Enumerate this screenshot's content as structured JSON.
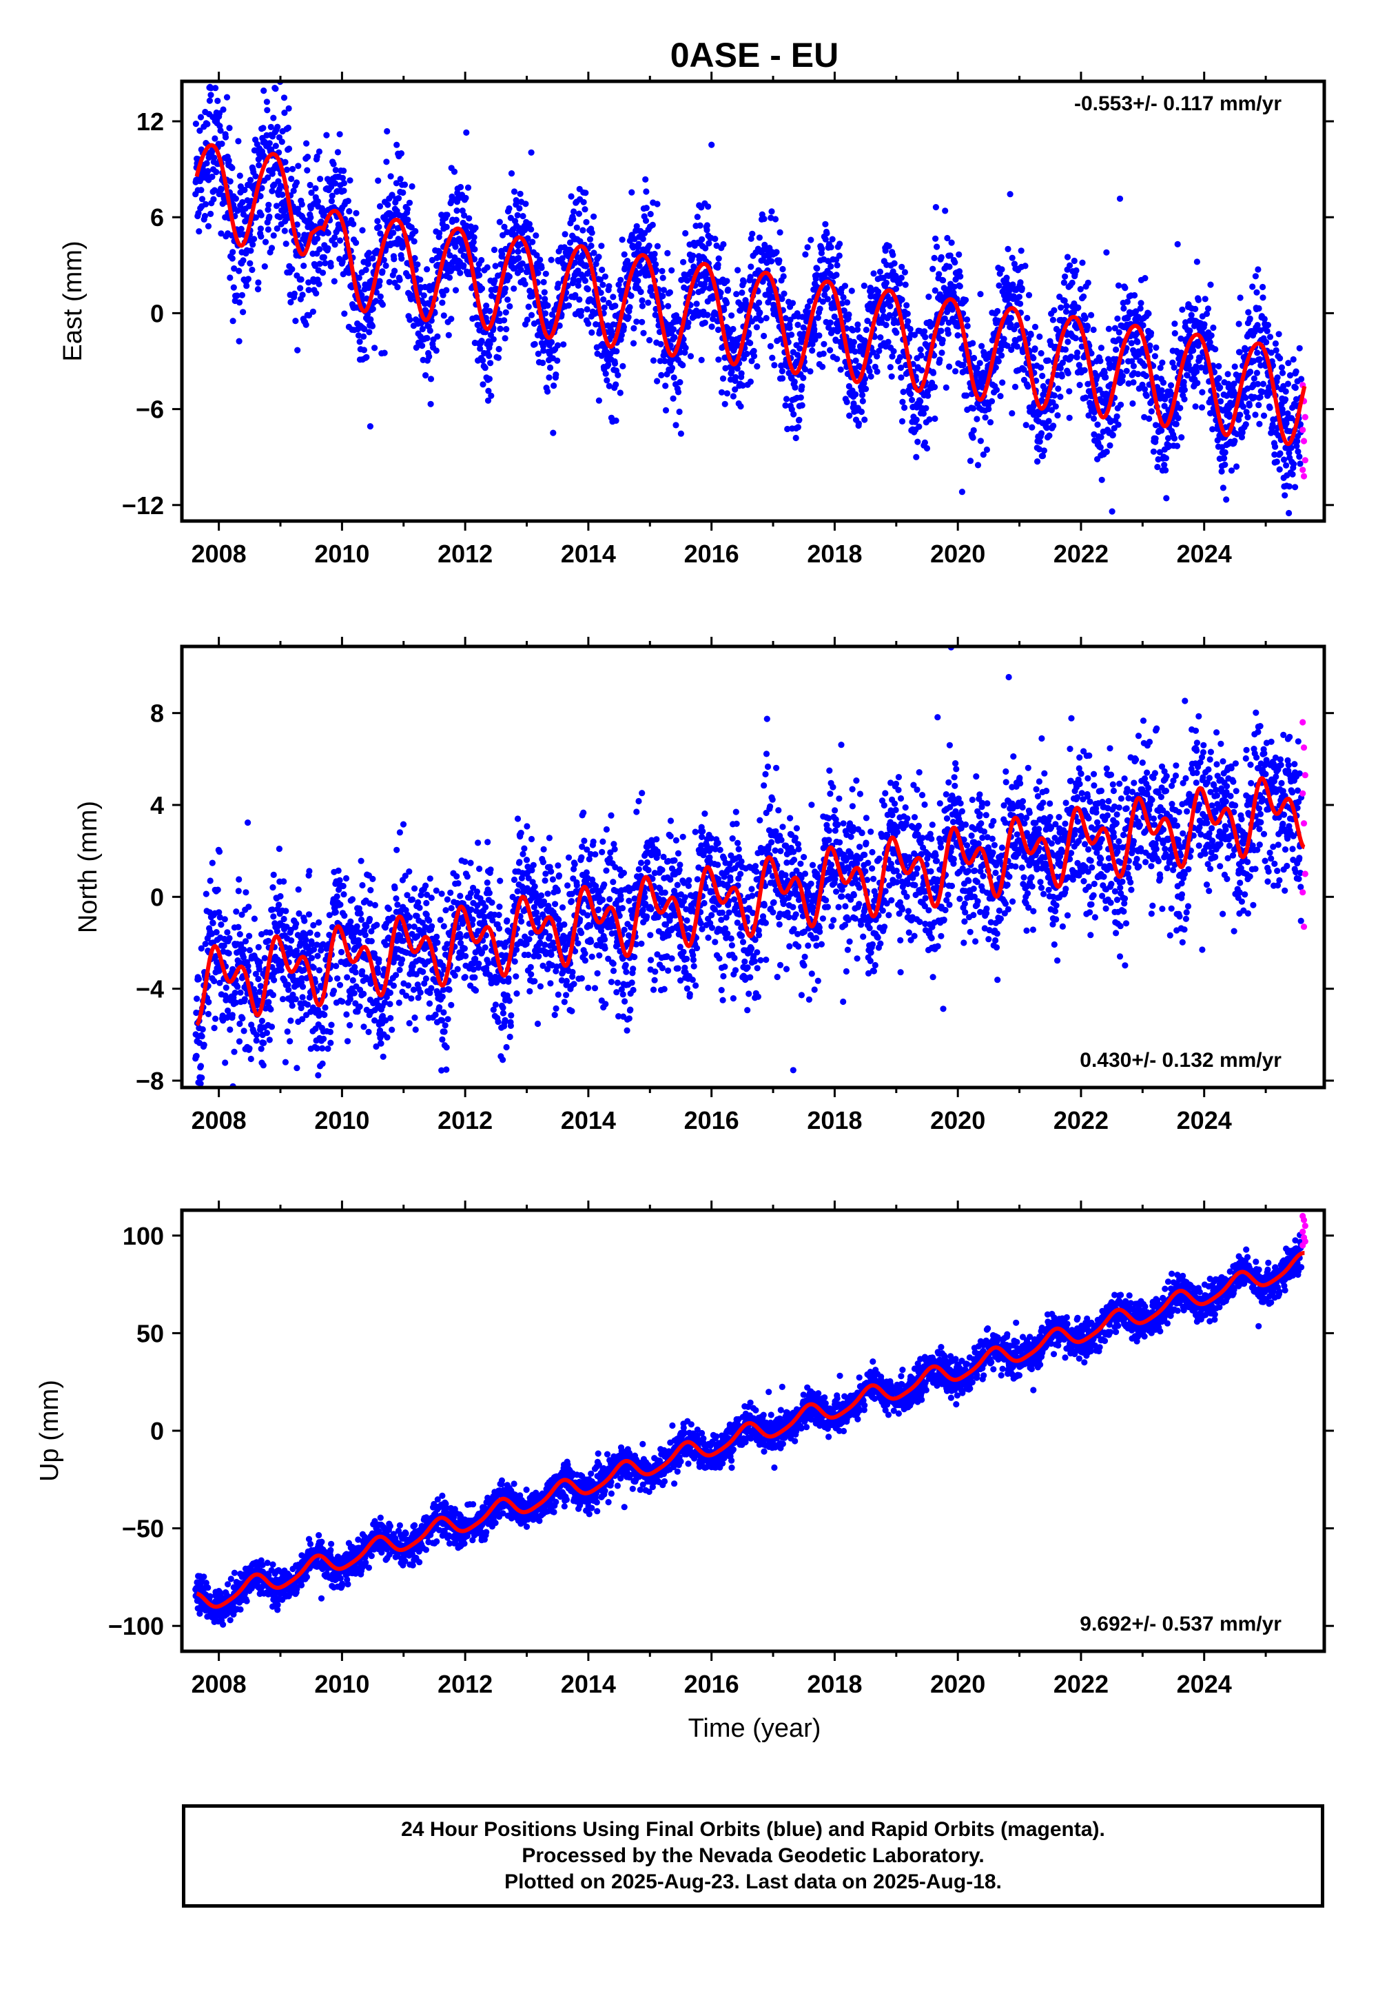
{
  "chart_data": {
    "type": "scatter",
    "title": "0ASE - EU",
    "xlabel": "Time (year)",
    "xlim": [
      2007.4,
      2025.95
    ],
    "xticks": [
      2008,
      2010,
      2012,
      2014,
      2016,
      2018,
      2020,
      2022,
      2024
    ],
    "xtick_labels": [
      "2008",
      "2010",
      "2012",
      "2014",
      "2016",
      "2018",
      "2020",
      "2022",
      "2024"
    ],
    "colors": {
      "final": "#0000ff",
      "rapid": "#ff00ff",
      "model": "#ff0000"
    },
    "panels": [
      {
        "key": "east",
        "ylabel": "East (mm)",
        "ylim": [
          -13,
          14.5
        ],
        "yticks": [
          12,
          6,
          0,
          -6,
          -12
        ],
        "ytick_labels": [
          "12",
          "6",
          "0",
          "−6",
          "−12"
        ],
        "rate": "-0.553+/- 0.117 mm/yr",
        "model": {
          "t0": 2016.5,
          "offset": 0.0,
          "slope": -0.553,
          "amp1": 3.0,
          "phase1": 2.4,
          "amp2": 0.3,
          "phase2": 0.5,
          "pre2009_offset": 3.0
        },
        "scatter": 2.0,
        "rapid_values": [
          -4.5,
          -5.5,
          -6.5,
          -7.3,
          -8.0,
          -9.2,
          -9.8,
          -10.2
        ]
      },
      {
        "key": "north",
        "ylabel": "North (mm)",
        "ylim": [
          -8.3,
          10.9
        ],
        "yticks": [
          8,
          4,
          0,
          -4,
          -8
        ],
        "ytick_labels": [
          "8",
          "4",
          "0",
          "−4",
          "−8"
        ],
        "rate": "0.430+/- 0.132 mm/yr",
        "model": {
          "t0": 2016.5,
          "offset": 0.0,
          "slope": 0.43,
          "amp1": 1.0,
          "phase1": 1.2,
          "amp2": 0.9,
          "phase2": 2.8,
          "pre2009_offset": 0.0
        },
        "scatter": 1.6,
        "rapid_values": [
          7.6,
          6.5,
          5.3,
          4.5,
          3.2,
          1.0,
          0.2,
          -1.3
        ]
      },
      {
        "key": "up",
        "ylabel": "Up (mm)",
        "ylim": [
          -113,
          113
        ],
        "yticks": [
          100,
          50,
          0,
          -50,
          -100
        ],
        "ytick_labels": [
          "100",
          "50",
          "0",
          "−50",
          "−100"
        ],
        "rate": "9.692+/- 0.537 mm/yr",
        "model": {
          "t0": 2016.5,
          "offset": -3.0,
          "slope": 9.69,
          "amp1": 5.0,
          "phase1": 4.3,
          "amp2": 1.0,
          "phase2": 0.0,
          "pre2009_offset": 0.0
        },
        "scatter": 4.5,
        "rapid_values": [
          110,
          108,
          105,
          102,
          99,
          97,
          95
        ]
      }
    ]
  },
  "footer": {
    "line1": "24 Hour Positions Using Final Orbits (blue) and Rapid Orbits (magenta).",
    "line2": "Processed by the Nevada Geodetic Laboratory.",
    "line3": "Plotted on 2025-Aug-23. Last data on 2025-Aug-18."
  }
}
